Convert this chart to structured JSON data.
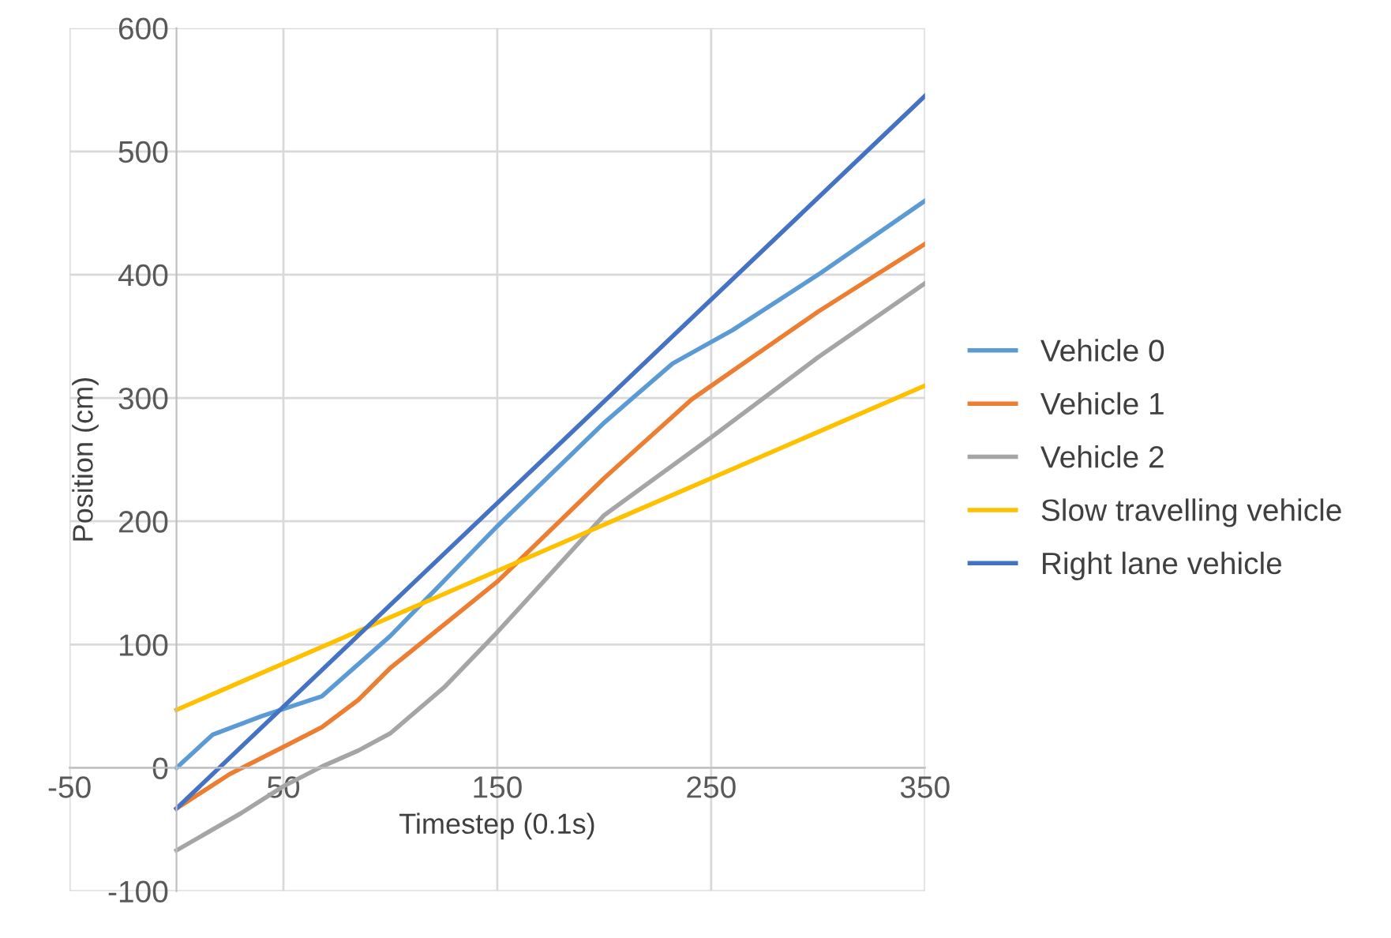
{
  "chart_data": {
    "type": "line",
    "xlabel": "Timestep (0.1s)",
    "ylabel": "Position (cm)",
    "xlim": [
      -50,
      350
    ],
    "ylim": [
      -100,
      600
    ],
    "xticks": [
      -50,
      50,
      150,
      250,
      350
    ],
    "yticks": [
      -100,
      0,
      100,
      200,
      300,
      400,
      500,
      600
    ],
    "grid": true,
    "legend": "right",
    "marker": "none",
    "line_style": "solid",
    "series": [
      {
        "name": "Vehicle 0",
        "color": "#5b9bd5",
        "x": [
          0,
          17,
          40,
          68,
          100,
          150,
          200,
          232,
          260,
          300,
          350
        ],
        "values": [
          0,
          27,
          42,
          58,
          107,
          196,
          280,
          328,
          355,
          400,
          460
        ]
      },
      {
        "name": "Vehicle 1",
        "color": "#ed7d31",
        "x": [
          0,
          25,
          50,
          68,
          85,
          100,
          150,
          200,
          241,
          270,
          300,
          350
        ],
        "values": [
          -33,
          -5,
          17,
          33,
          55,
          81,
          151,
          235,
          299,
          334,
          370,
          425
        ]
      },
      {
        "name": "Vehicle 2",
        "color": "#a5a5a5",
        "x": [
          0,
          30,
          50,
          68,
          85,
          100,
          125,
          150,
          200,
          250,
          300,
          350
        ],
        "values": [
          -67,
          -37,
          -15,
          1,
          14,
          28,
          65,
          110,
          205,
          268,
          333,
          393
        ]
      },
      {
        "name": "Slow travelling vehicle",
        "color": "#ffc000",
        "x": [
          0,
          350
        ],
        "values": [
          47,
          310
        ]
      },
      {
        "name": "Right lane vehicle",
        "color": "#4472c4",
        "x": [
          0,
          350
        ],
        "values": [
          -33,
          545
        ]
      }
    ]
  }
}
